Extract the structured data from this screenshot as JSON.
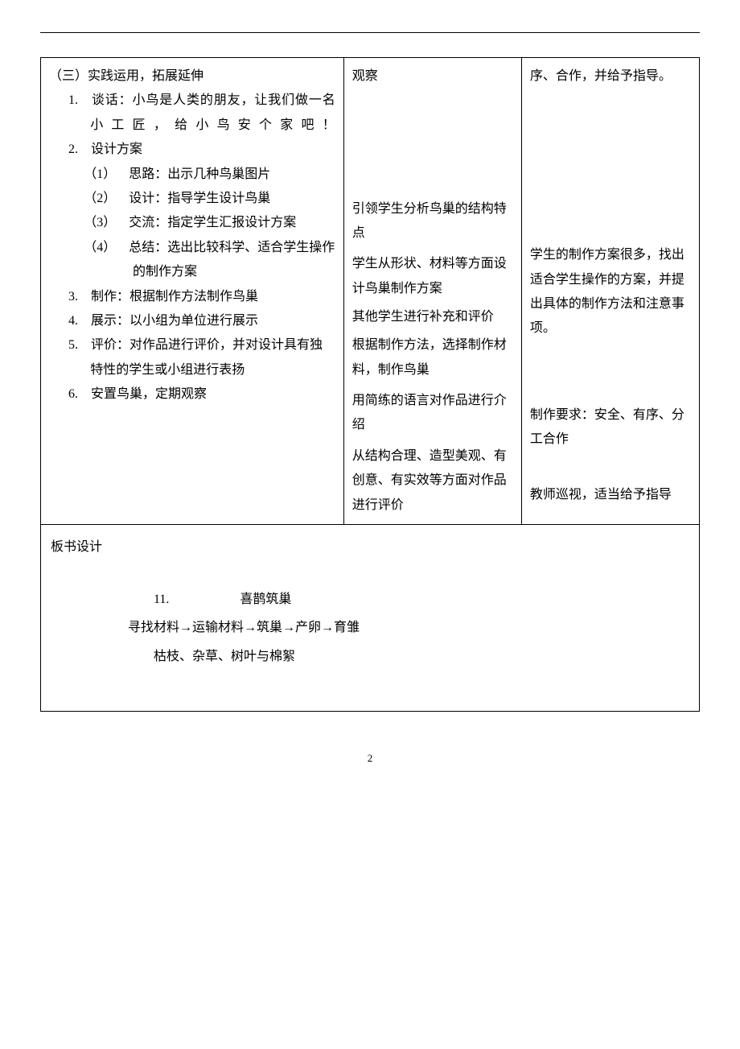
{
  "col1": {
    "section": "（三）实践运用，拓展延伸",
    "item1": "1. 谈话：小鸟是人类的朋友，让我们做一名小工匠，给小鸟安个家吧！",
    "item2": "2. 设计方案",
    "item2_1": "（1） 思路：出示几种鸟巢图片",
    "item2_2": "（2） 设计：指导学生设计鸟巢",
    "item2_3": "（3） 交流：指定学生汇报设计方案",
    "item2_4": "（4） 总结：选出比较科学、适合学生操作的制作方案",
    "item3": "3. 制作：根据制作方法制作鸟巢",
    "item4": "4. 展示：以小组为单位进行展示",
    "item5": "5. 评价：对作品进行评价，并对设计具有独特性的学生或小组进行表扬",
    "item6": "6. 安置鸟巢，定期观察"
  },
  "col2": {
    "p1": "观察",
    "p2": "引领学生分析鸟巢的结构特点",
    "p3": "学生从形状、材料等方面设计鸟巢制作方案",
    "p4": "其他学生进行补充和评价",
    "p5": "根据制作方法，选择制作材料，制作鸟巢",
    "p6": "用简练的语言对作品进行介绍",
    "p7": "从结构合理、造型美观、有创意、有实效等方面对作品进行评价"
  },
  "col3": {
    "p1": "序、合作，并给予指导。",
    "p2": "学生的制作方案很多，找出适合学生操作的方案，并提出具体的制作方法和注意事项。",
    "p3": "制作要求：安全、有序、分工合作",
    "p4": "教师巡视，适当给予指导"
  },
  "board": {
    "title": "板书设计",
    "line1_num": "11.",
    "line1_text": "喜鹊筑巢",
    "line2": "寻找材料→运输材料→筑巢→产卵→育雏",
    "line3": "枯枝、杂草、树叶与棉絮"
  },
  "page_number": "2"
}
